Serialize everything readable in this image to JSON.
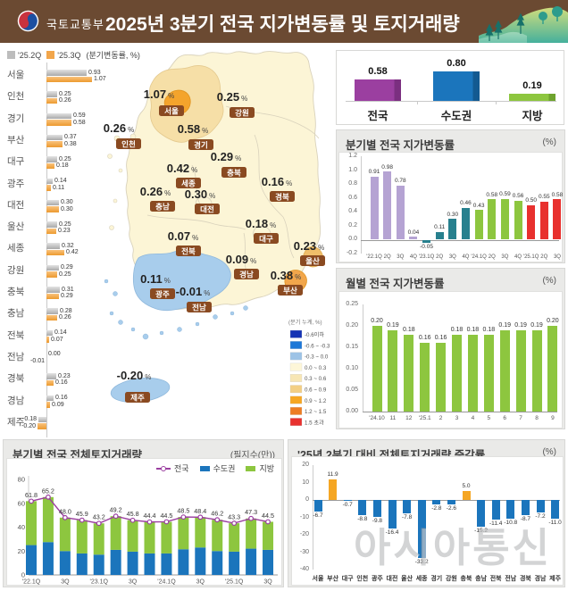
{
  "header": {
    "agency": "국토교통부",
    "title": "2025년 3분기 전국 지가변동률 및 토지거래량"
  },
  "watermark": "아시아통신",
  "map": {
    "regions": [
      {
        "name": "서울",
        "value": "1.07"
      },
      {
        "name": "인천",
        "value": "0.26"
      },
      {
        "name": "경기",
        "value": "0.58"
      },
      {
        "name": "강원",
        "value": "0.25"
      },
      {
        "name": "충북",
        "value": "0.29"
      },
      {
        "name": "세종",
        "value": "0.42"
      },
      {
        "name": "충남",
        "value": "0.26"
      },
      {
        "name": "대전",
        "value": "0.30"
      },
      {
        "name": "경북",
        "value": "0.16"
      },
      {
        "name": "대구",
        "value": "0.18"
      },
      {
        "name": "전북",
        "value": "0.07"
      },
      {
        "name": "울산",
        "value": "0.23"
      },
      {
        "name": "광주",
        "value": "0.11"
      },
      {
        "name": "경남",
        "value": "0.09"
      },
      {
        "name": "부산",
        "value": "0.38"
      },
      {
        "name": "전남",
        "value": "-0.01"
      },
      {
        "name": "제주",
        "value": "-0.20"
      }
    ],
    "legend": {
      "title": "(분기 누계, %)",
      "items": [
        {
          "range": "-0.6이하",
          "color": "#1533b4"
        },
        {
          "range": "-0.6 ~ -0.3",
          "color": "#1e78d7"
        },
        {
          "range": "-0.3 ~ 0.0",
          "color": "#9dc3e6"
        },
        {
          "range": "0.0 ~ 0.3",
          "color": "#fdf6d8"
        },
        {
          "range": "0.3 ~ 0.6",
          "color": "#f7e6b5"
        },
        {
          "range": "0.6 ~ 0.9",
          "color": "#f3cf84"
        },
        {
          "range": "0.9 ~ 1.2",
          "color": "#f6a723"
        },
        {
          "range": "1.2 ~ 1.5",
          "color": "#ed7d23"
        },
        {
          "range": "1.5 초과",
          "color": "#e8312e"
        }
      ]
    }
  },
  "chart_data": [
    {
      "id": "region_quarter_change",
      "type": "bar",
      "unit_label": "(분기변동률, %)",
      "legend": [
        {
          "label": "'25.2Q",
          "color": "#bdbdbd"
        },
        {
          "label": "'25.3Q",
          "color": "#f2a64b"
        }
      ],
      "categories": [
        "서울",
        "인천",
        "경기",
        "부산",
        "대구",
        "광주",
        "대전",
        "울산",
        "세종",
        "강원",
        "충북",
        "충남",
        "전북",
        "전남",
        "경북",
        "경남",
        "제주"
      ],
      "series": [
        {
          "name": "'25.2Q",
          "values": [
            0.93,
            0.25,
            0.59,
            0.37,
            0.25,
            0.14,
            0.3,
            0.25,
            0.32,
            0.29,
            0.31,
            0.28,
            0.14,
            0.0,
            0.23,
            0.16,
            -0.18
          ]
        },
        {
          "name": "'25.3Q",
          "values": [
            1.07,
            0.26,
            0.58,
            0.38,
            0.18,
            0.11,
            0.3,
            0.23,
            0.42,
            0.25,
            0.29,
            0.26,
            0.07,
            -0.01,
            0.16,
            0.09,
            -0.2
          ]
        }
      ]
    },
    {
      "id": "summary",
      "type": "bar",
      "categories": [
        "전국",
        "수도권",
        "지방"
      ],
      "values": [
        0.58,
        0.8,
        0.19
      ],
      "colors": [
        "#9b3fa0",
        "#1b75bc",
        "#8dc63f"
      ],
      "edge_colors": [
        "#7b2f80",
        "#135a91",
        "#6ea32e"
      ]
    },
    {
      "id": "quarterly",
      "type": "bar",
      "title": "분기별 전국 지가변동률",
      "unit": "(%)",
      "yticks": [
        1.2,
        1.0,
        0.8,
        0.6,
        0.4,
        0.2,
        0.0,
        -0.2
      ],
      "ylim": [
        -0.2,
        1.2
      ],
      "categories": [
        "'22.1Q",
        "2Q",
        "3Q",
        "4Q",
        "'23.1Q",
        "2Q",
        "3Q",
        "4Q",
        "'24.1Q",
        "2Q",
        "3Q",
        "4Q",
        "'25.1Q",
        "2Q",
        "3Q"
      ],
      "values": [
        0.91,
        0.98,
        0.78,
        0.04,
        -0.05,
        0.11,
        0.3,
        0.46,
        0.43,
        0.58,
        0.59,
        0.56,
        0.5,
        0.55,
        0.58
      ],
      "group_colors": [
        "#b5a3d3",
        "#27808e",
        "#8dc63f",
        "#e8312e"
      ]
    },
    {
      "id": "monthly",
      "type": "bar",
      "title": "월별 전국 지가변동률",
      "unit": "(%)",
      "yticks": [
        0.25,
        0.2,
        0.15,
        0.1,
        0.05,
        0.0
      ],
      "ylim": [
        0,
        0.25
      ],
      "categories": [
        "'24.10",
        "11",
        "12",
        "'25.1",
        "2",
        "3",
        "4",
        "5",
        "6",
        "7",
        "8",
        "9"
      ],
      "values": [
        0.2,
        0.19,
        0.18,
        0.16,
        0.16,
        0.18,
        0.18,
        0.18,
        0.19,
        0.19,
        0.19,
        0.2
      ],
      "color": "#8dc63f"
    },
    {
      "id": "volume",
      "type": "bar+line",
      "title": "분기별 전국 전체토지거래량",
      "unit": "(필지수(만))",
      "yticks": [
        80,
        60,
        40,
        20,
        0
      ],
      "ylim": [
        0,
        80
      ],
      "categories": [
        "'22.1Q",
        "2Q",
        "3Q",
        "4Q",
        "'23.1Q",
        "2Q",
        "3Q",
        "4Q",
        "'24.1Q",
        "2Q",
        "3Q",
        "4Q",
        "'25.1Q",
        "2Q",
        "3Q"
      ],
      "xlabels_shown": [
        "'22.1Q",
        "3Q",
        "'23.1Q",
        "3Q",
        "'24.1Q",
        "3Q",
        "'25.1Q",
        "3Q"
      ],
      "series": [
        {
          "name": "전국",
          "type": "line",
          "color": "#9b3fa0",
          "values": [
            61.8,
            65.2,
            48.0,
            45.9,
            43.2,
            49.2,
            45.8,
            44.4,
            44.5,
            48.5,
            48.4,
            46.2,
            43.3,
            47.3,
            44.5
          ]
        },
        {
          "name": "수도권",
          "type": "bar",
          "color": "#1b75bc",
          "values": [
            25.0,
            27.5,
            20.0,
            18.0,
            17.0,
            21.0,
            19.5,
            18.0,
            18.0,
            21.5,
            23.0,
            20.0,
            19.5,
            22.0,
            21.0
          ]
        },
        {
          "name": "지방",
          "type": "bar",
          "color": "#8dc63f",
          "values": [
            36.8,
            37.7,
            28.0,
            27.9,
            26.2,
            28.2,
            26.3,
            26.4,
            26.5,
            27.0,
            25.4,
            26.2,
            23.8,
            25.3,
            23.5
          ]
        }
      ]
    },
    {
      "id": "volume_change",
      "type": "bar",
      "title": "'25년 2분기 대비 전체토지거래량 증감률",
      "unit": "(%)",
      "yticks": [
        20,
        10,
        0,
        -10,
        -20,
        -30,
        -40
      ],
      "ylim": [
        -40,
        20
      ],
      "categories": [
        "서울",
        "부산",
        "대구",
        "인천",
        "광주",
        "대전",
        "울산",
        "세종",
        "경기",
        "강원",
        "충북",
        "충남",
        "전북",
        "전남",
        "경북",
        "경남",
        "제주"
      ],
      "values": [
        -6.7,
        11.9,
        -0.7,
        -8.8,
        -9.8,
        -16.4,
        -7.8,
        -33.2,
        -2.8,
        -2.6,
        5.0,
        -15.2,
        -11.4,
        -10.8,
        -8.7,
        -7.2,
        -11.0
      ],
      "pos_color": "#f5a623",
      "neg_color": "#1b75bc"
    }
  ]
}
